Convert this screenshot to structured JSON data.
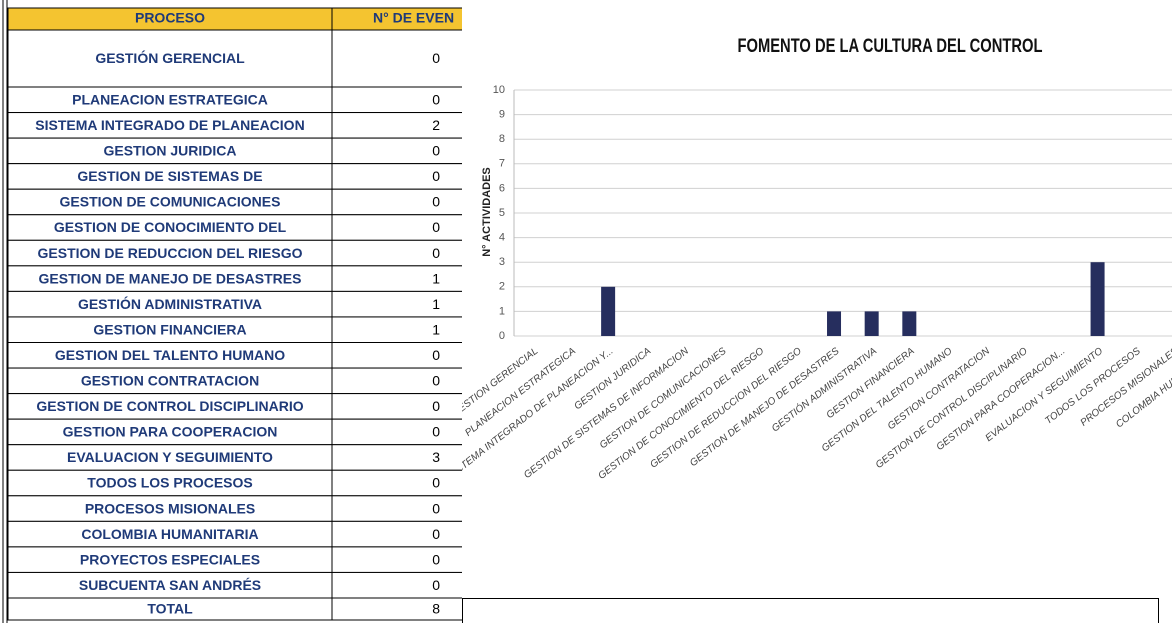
{
  "table": {
    "header": [
      "PROCESO",
      "N° DE EVEN"
    ],
    "rows": [
      [
        "GESTIÓN GERENCIAL",
        "0"
      ],
      [
        "PLANEACION ESTRATEGICA",
        "0"
      ],
      [
        "SISTEMA INTEGRADO DE PLANEACION",
        "2"
      ],
      [
        "GESTION JURIDICA",
        "0"
      ],
      [
        "GESTION DE SISTEMAS DE",
        "0"
      ],
      [
        "GESTION DE COMUNICACIONES",
        "0"
      ],
      [
        "GESTION DE CONOCIMIENTO DEL",
        "0"
      ],
      [
        "GESTION DE REDUCCION DEL RIESGO",
        "0"
      ],
      [
        "GESTION DE MANEJO DE DESASTRES",
        "1"
      ],
      [
        "GESTIÓN ADMINISTRATIVA",
        "1"
      ],
      [
        "GESTION FINANCIERA",
        "1"
      ],
      [
        "GESTION DEL TALENTO HUMANO",
        "0"
      ],
      [
        "GESTION CONTRATACION",
        "0"
      ],
      [
        "GESTION DE CONTROL DISCIPLINARIO",
        "0"
      ],
      [
        "GESTION PARA COOPERACION",
        "0"
      ],
      [
        "EVALUACION Y SEGUIMIENTO",
        "3"
      ],
      [
        "TODOS LOS PROCESOS",
        "0"
      ],
      [
        "PROCESOS MISIONALES",
        "0"
      ],
      [
        "COLOMBIA HUMANITARIA",
        "0"
      ],
      [
        "PROYECTOS ESPECIALES",
        "0"
      ],
      [
        "SUBCUENTA SAN ANDRÉS",
        "0"
      ],
      [
        "TOTAL",
        "8"
      ]
    ]
  },
  "chart_data": {
    "type": "bar",
    "title": "FOMENTO DE LA CULTURA DEL CONTROL",
    "y_label": "N° ACTIVIDADES",
    "categories": [
      "GESTION GERENCIAL",
      "PLANEACION ESTRATEGICA",
      "SISTEMA INTEGRADO DE PLANEACION Y...",
      "GESTION JURIDICA",
      "GESTION DE SISTEMAS DE INFORMACION",
      "GESTION DE COMUNICACIONES",
      "GESTION DE CONOCIMIENTO DEL RIESGO",
      "GESTION DE REDUCCION DEL RIESGO",
      "GESTION DE MANEJO DE DESASTRES",
      "GESTIÓN ADMINISTRATIVA",
      "GESTION FINANCIERA",
      "GESTION DEL TALENTO HUMANO",
      "GESTION CONTRATACION",
      "GESTION DE CONTROL DISCIPLINARIO",
      "GESTION PARA COOPERACION...",
      "EVALUACION Y SEGUIMIENTO",
      "TODOS LOS PROCESOS",
      "PROCESOS MISIONALES",
      "COLOMBIA HUMANITARIA"
    ],
    "values": [
      0,
      0,
      2,
      0,
      0,
      0,
      0,
      0,
      1,
      1,
      1,
      0,
      0,
      0,
      0,
      3,
      0,
      0,
      0
    ],
    "color": "#262e5e",
    "ylim": [
      0,
      10
    ],
    "yticks": [
      0,
      1,
      2,
      3,
      4,
      5,
      6,
      7,
      8,
      9,
      10
    ],
    "grid": true
  }
}
